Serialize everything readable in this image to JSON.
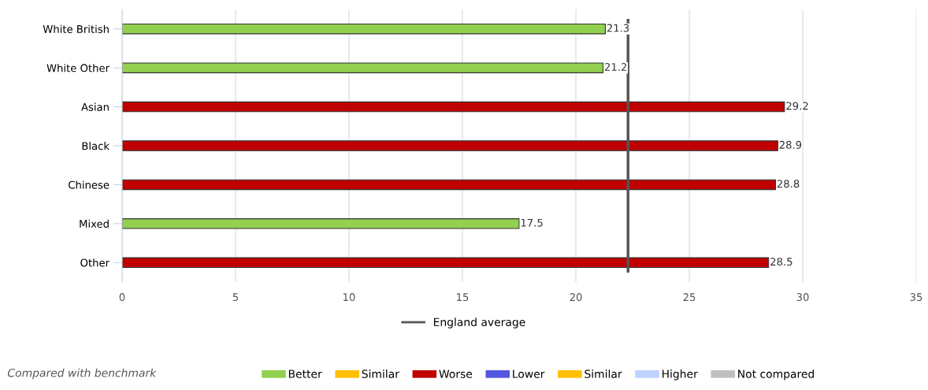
{
  "chart_data": {
    "type": "bar",
    "orientation": "horizontal",
    "categories": [
      "White British",
      "White Other",
      "Asian",
      "Black",
      "Chinese",
      "Mixed",
      "Other"
    ],
    "series": [
      {
        "name": "Better",
        "color": "#92d050",
        "values": [
          21.3,
          21.2,
          null,
          null,
          null,
          17.5,
          null
        ]
      },
      {
        "name": "Similar",
        "color": "#ffc000",
        "values": [
          null,
          null,
          null,
          null,
          null,
          null,
          null
        ]
      },
      {
        "name": "Worse",
        "color": "#c00000",
        "values": [
          null,
          null,
          29.2,
          28.9,
          28.8,
          null,
          28.5
        ]
      },
      {
        "name": "Lower",
        "color": "#5555e0",
        "values": [
          null,
          null,
          null,
          null,
          null,
          null,
          null
        ]
      },
      {
        "name": "Similar",
        "color": "#ffc000",
        "values": [
          null,
          null,
          null,
          null,
          null,
          null,
          null
        ]
      },
      {
        "name": "Higher",
        "color": "#bed2ff",
        "values": [
          null,
          null,
          null,
          null,
          null,
          null,
          null
        ]
      },
      {
        "name": "Not compared",
        "color": "#c0c0c0",
        "values": [
          null,
          null,
          null,
          null,
          null,
          null,
          null
        ]
      }
    ],
    "legend_title": "Compared with benchmark",
    "legend": "bottom",
    "data_labels": true,
    "xlim": [
      0,
      35
    ],
    "xticks": [
      0,
      5,
      10,
      15,
      20,
      25,
      30,
      35
    ],
    "grid": "x",
    "ref_lines": [
      {
        "axis": "x",
        "value": 22.3,
        "label": "England average",
        "color": "#555555"
      }
    ]
  }
}
